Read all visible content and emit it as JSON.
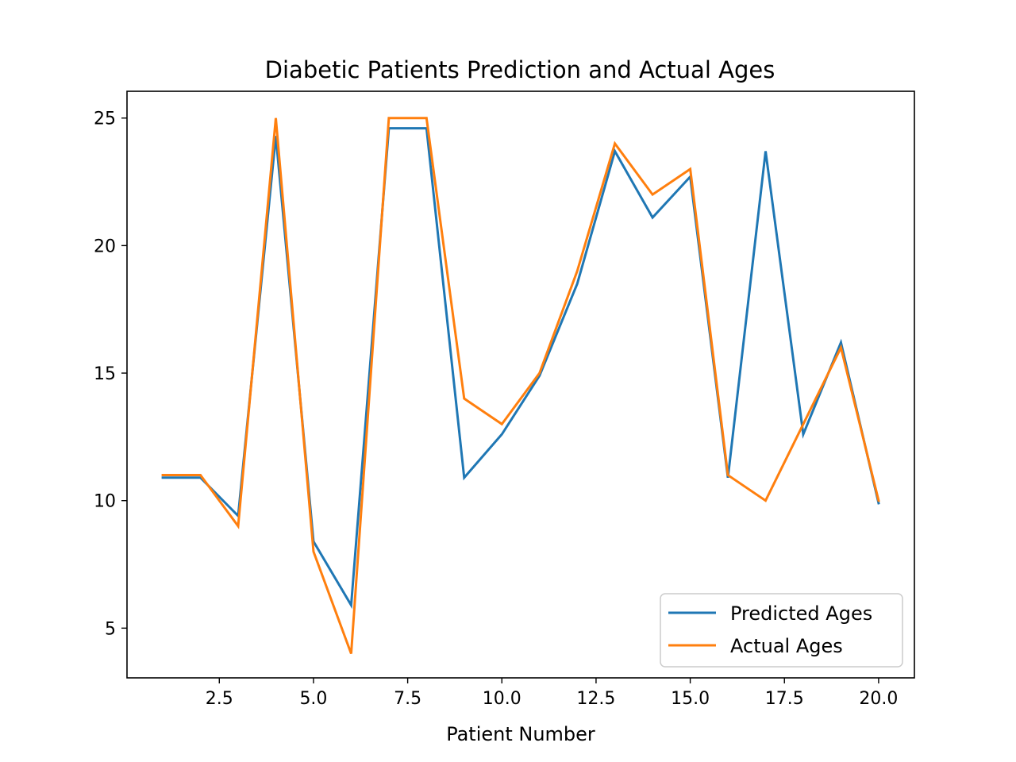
{
  "chart_data": {
    "type": "line",
    "title": "Diabetic Patients Prediction and Actual Ages",
    "xlabel": "Patient Number",
    "ylabel": "",
    "xlim": [
      0.05,
      20.95
    ],
    "ylim": [
      3.05,
      26.05
    ],
    "xticks": [
      2.5,
      5.0,
      7.5,
      10.0,
      12.5,
      15.0,
      17.5,
      20.0
    ],
    "xtick_labels": [
      "2.5",
      "5.0",
      "7.5",
      "10.0",
      "12.5",
      "15.0",
      "17.5",
      "20.0"
    ],
    "yticks": [
      5,
      10,
      15,
      20,
      25
    ],
    "ytick_labels": [
      "5",
      "10",
      "15",
      "20",
      "25"
    ],
    "grid": false,
    "legend_position": "bottom-right",
    "x": [
      1,
      2,
      3,
      4,
      5,
      6,
      7,
      8,
      9,
      10,
      11,
      12,
      13,
      14,
      15,
      16,
      17,
      18,
      19,
      20
    ],
    "series": [
      {
        "name": "Predicted Ages",
        "color": "#1f77b4",
        "values": [
          10.9,
          10.9,
          9.4,
          24.3,
          8.4,
          5.9,
          24.6,
          24.6,
          10.9,
          12.6,
          14.9,
          18.5,
          23.7,
          21.1,
          22.7,
          10.9,
          23.7,
          12.6,
          16.2,
          9.9
        ]
      },
      {
        "name": "Actual Ages",
        "color": "#ff7f0e",
        "values": [
          11,
          11,
          9,
          25,
          8,
          4,
          25,
          25,
          14,
          13,
          15,
          19,
          24,
          22,
          23,
          11,
          10,
          13,
          16,
          10
        ]
      }
    ]
  }
}
